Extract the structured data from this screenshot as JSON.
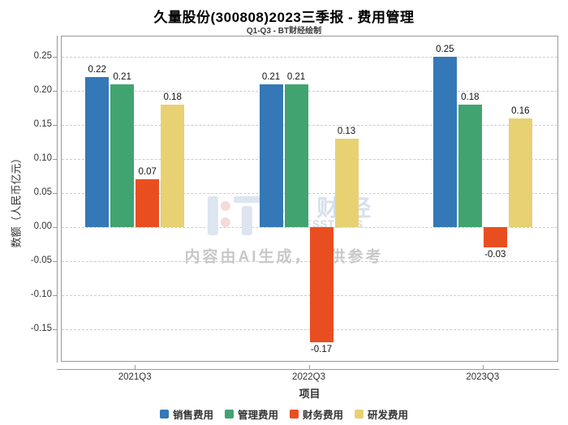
{
  "title": "久量股份(300808)2023三季报 - 费用管理",
  "subtitle": "Q1-Q3 - BT财经绘制",
  "watermark": {
    "logo_text": "BT财经",
    "logo_subtext": "BUSINESSTIMES",
    "disclaimer": "内容由AI生成，仅供参考"
  },
  "chart_data": {
    "type": "bar",
    "categories": [
      "2021Q3",
      "2022Q3",
      "2023Q3"
    ],
    "series": [
      {
        "name": "销售费用",
        "color": "#3478b7",
        "values": [
          0.22,
          0.21,
          0.25
        ]
      },
      {
        "name": "管理费用",
        "color": "#41a470",
        "values": [
          0.21,
          0.21,
          0.18
        ]
      },
      {
        "name": "财务费用",
        "color": "#e94e21",
        "values": [
          0.07,
          -0.17,
          -0.03
        ]
      },
      {
        "name": "研发费用",
        "color": "#e8d173",
        "values": [
          0.18,
          0.13,
          0.16
        ]
      }
    ],
    "xlabel": "项目",
    "ylabel": "数额（人民币亿元）",
    "ylim": [
      -0.197,
      0.28
    ],
    "yticks": [
      0.25,
      0.2,
      0.15,
      0.1,
      0.05,
      0.0,
      -0.05,
      -0.1,
      -0.15
    ],
    "grid": true,
    "legend_position": "bottom",
    "value_labels": true,
    "group_center_fractions": [
      0.1476,
      0.4984,
      0.8491
    ]
  }
}
